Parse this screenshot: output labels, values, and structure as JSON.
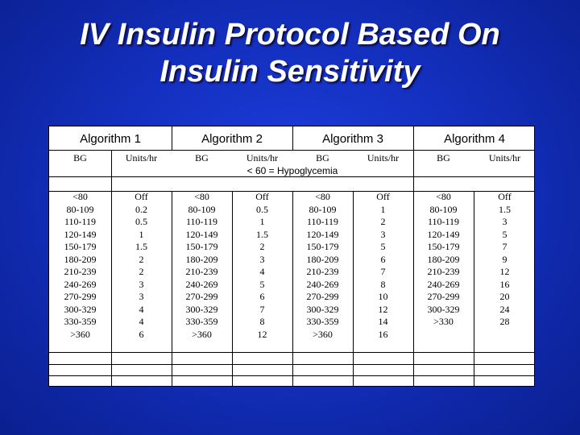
{
  "title": {
    "line1": "IV Insulin Protocol Based On",
    "line2": "Insulin Sensitivity"
  },
  "algorithms": [
    "Algorithm 1",
    "Algorithm 2",
    "Algorithm 3",
    "Algorithm 4"
  ],
  "subheaders": [
    "BG",
    "Units/hr",
    "BG",
    "Units/hr",
    "BG",
    "Units/hr",
    "BG",
    "Units/hr"
  ],
  "hypoglycemia_note": "< 60 = Hypoglycemia",
  "columns": {
    "alg1_bg": [
      "<80",
      "80-109",
      "110-119",
      "120-149",
      "150-179",
      "180-209",
      "210-239",
      "240-269",
      "270-299",
      "300-329",
      "330-359",
      ">360"
    ],
    "alg1_units": [
      "Off",
      "0.2",
      "0.5",
      "1",
      "1.5",
      "2",
      "2",
      "3",
      "3",
      "4",
      "4",
      "6"
    ],
    "alg2_bg": [
      "<80",
      "80-109",
      "110-119",
      "120-149",
      "150-179",
      "180-209",
      "210-239",
      "240-269",
      "270-299",
      "300-329",
      "330-359",
      ">360"
    ],
    "alg2_units": [
      "Off",
      "0.5",
      "1",
      "1.5",
      "2",
      "3",
      "4",
      "5",
      "6",
      "7",
      "8",
      "12"
    ],
    "alg3_bg": [
      "<80",
      "80-109",
      "110-119",
      "120-149",
      "150-179",
      "180-209",
      "210-239",
      "240-269",
      "270-299",
      "300-329",
      "330-359",
      ">360"
    ],
    "alg3_units": [
      "Off",
      "1",
      "2",
      "3",
      "5",
      "6",
      "7",
      "8",
      "10",
      "12",
      "14",
      "16"
    ],
    "alg4_bg": [
      "<80",
      "80-109",
      "110-119",
      "120-149",
      "150-179",
      "180-209",
      "210-239",
      "240-269",
      "270-299",
      "300-329",
      ">330"
    ],
    "alg4_units": [
      "Off",
      "1.5",
      "3",
      "5",
      "7",
      "9",
      "12",
      "16",
      "20",
      "24",
      "28"
    ]
  }
}
